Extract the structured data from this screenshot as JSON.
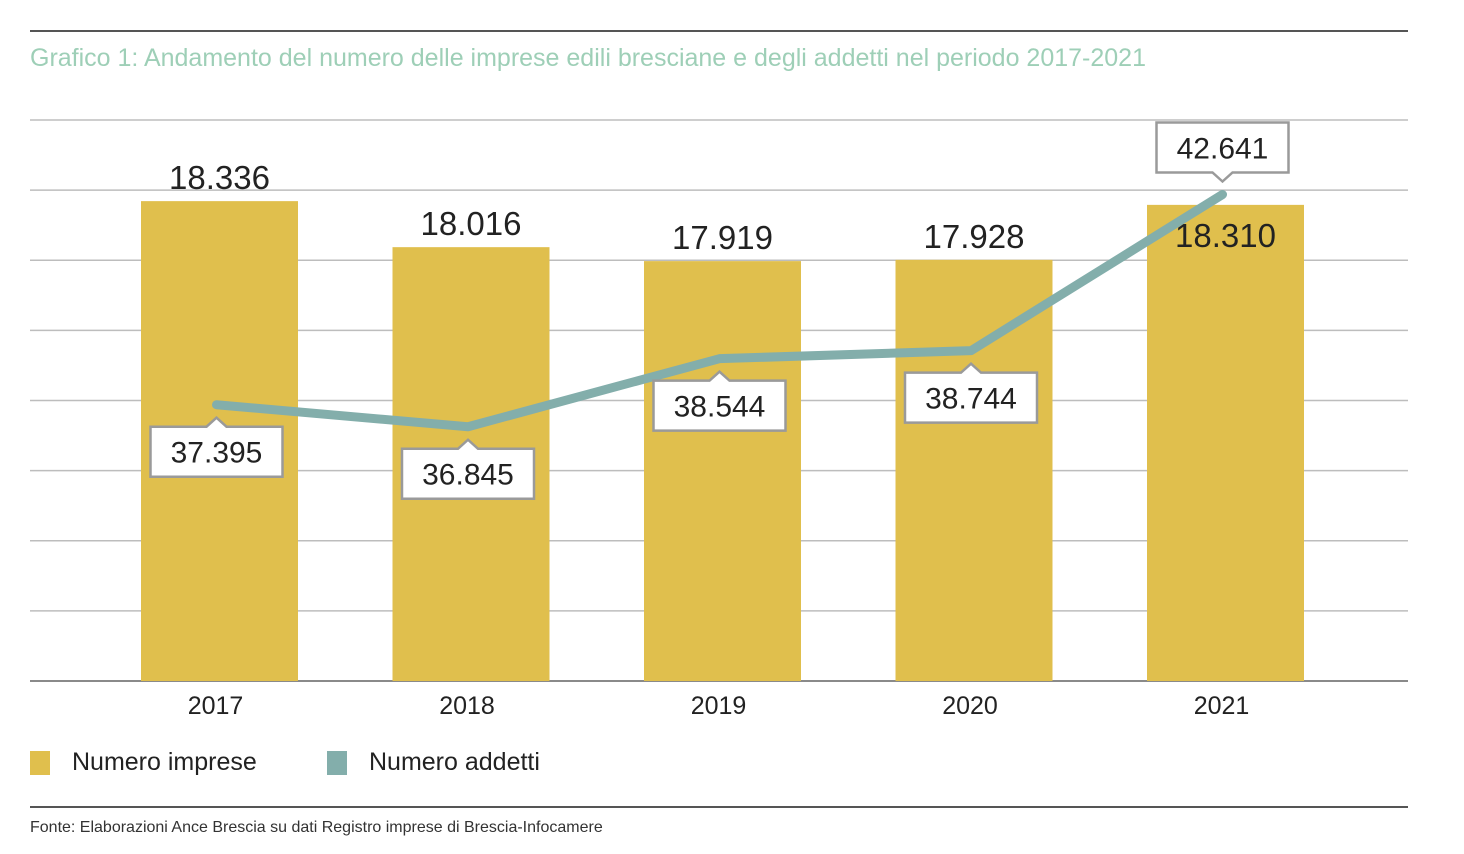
{
  "title": "Grafico 1: Andamento del numero delle imprese edili bresciane e degli addetti nel periodo 2017-2021",
  "source": "Fonte: Elaborazioni Ance Brescia su dati Registro imprese di Brescia-Infocamere",
  "legend": [
    {
      "label": "Numero imprese",
      "color": "#e0bf4d"
    },
    {
      "label": "Numero addetti",
      "color": "#83aeab"
    }
  ],
  "chart_data": {
    "type": "bar",
    "categories": [
      "2017",
      "2018",
      "2019",
      "2020",
      "2021"
    ],
    "series": [
      {
        "name": "Numero imprese",
        "type": "bar",
        "axis": "left",
        "values": [
          18336,
          18016,
          17919,
          17928,
          18310
        ],
        "labels": [
          "18.336",
          "18.016",
          "17.919",
          "17.928",
          "18.310"
        ],
        "color": "#e0bf4d"
      },
      {
        "name": "Numero addetti",
        "type": "line",
        "axis": "right",
        "values": [
          37395,
          36845,
          38544,
          38744,
          42641
        ],
        "labels": [
          "37.395",
          "36.845",
          "38.544",
          "38.744",
          "42.641"
        ],
        "color": "#83aeab"
      }
    ],
    "ylim_left": [
      15000,
      18900
    ],
    "ylim_right": [
      30500,
      44500
    ],
    "grid": true,
    "legend_position": "bottom-left"
  }
}
